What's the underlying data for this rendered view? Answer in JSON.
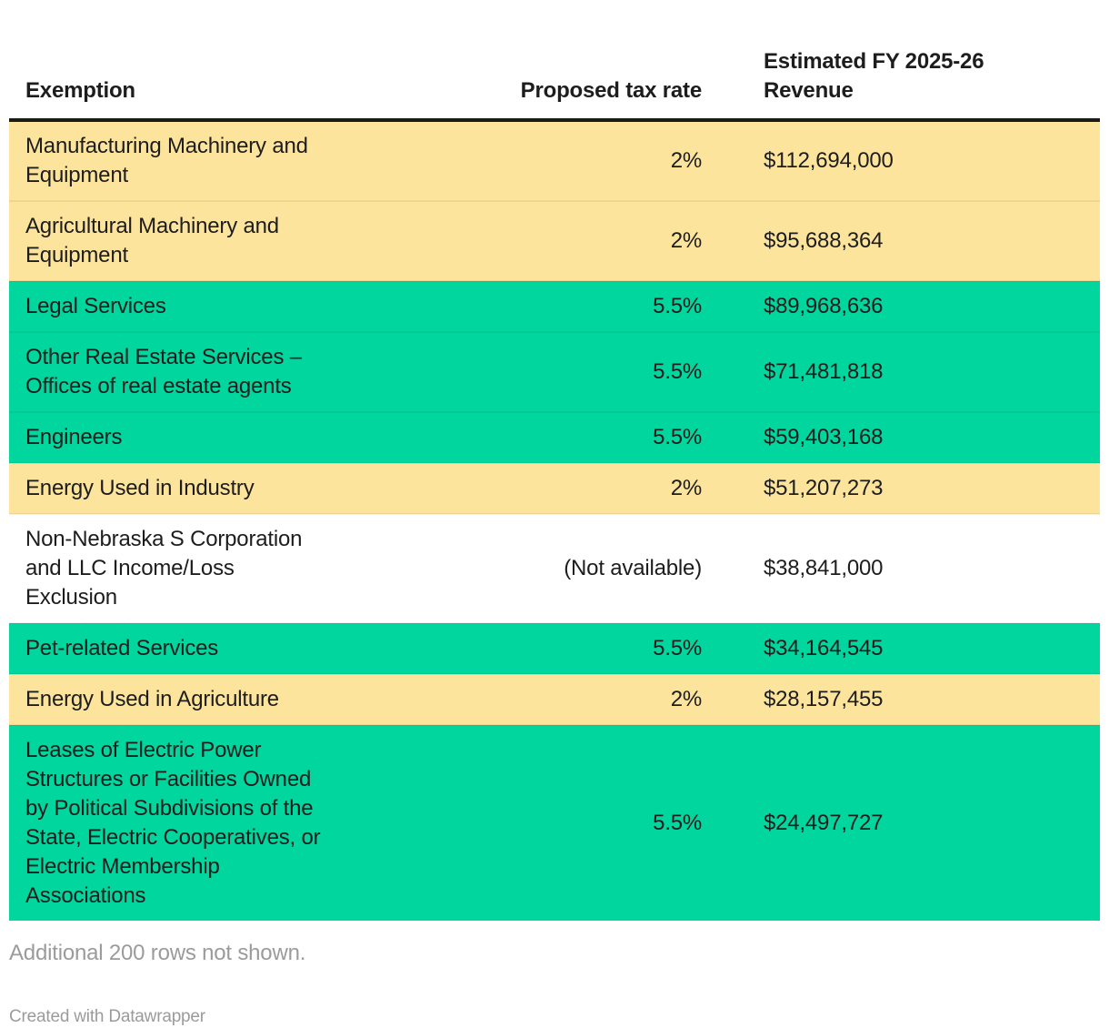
{
  "colors": {
    "yellow": "#fde49c",
    "green": "#00d69e",
    "none": "#ffffff",
    "header_rule": "#1a1a1a",
    "text": "#1d1d1d",
    "muted_text": "#9b9b9b"
  },
  "chart_data": {
    "type": "table",
    "columns": [
      {
        "label": "Exemption"
      },
      {
        "label": "Proposed tax rate"
      },
      {
        "label": "Estimated FY 2025-26\nRevenue"
      }
    ],
    "rows": [
      {
        "exemption": "Manufacturing Machinery and\nEquipment",
        "proposed_tax_rate": "2%",
        "estimated_revenue": "$112,694,000",
        "highlight": "yellow"
      },
      {
        "exemption": "Agricultural Machinery and\nEquipment",
        "proposed_tax_rate": "2%",
        "estimated_revenue": "$95,688,364",
        "highlight": "yellow"
      },
      {
        "exemption": "Legal Services",
        "proposed_tax_rate": "5.5%",
        "estimated_revenue": "$89,968,636",
        "highlight": "green"
      },
      {
        "exemption": "Other Real Estate Services –\nOffices of real estate agents",
        "proposed_tax_rate": "5.5%",
        "estimated_revenue": "$71,481,818",
        "highlight": "green"
      },
      {
        "exemption": "Engineers",
        "proposed_tax_rate": "5.5%",
        "estimated_revenue": "$59,403,168",
        "highlight": "green"
      },
      {
        "exemption": "Energy Used in Industry",
        "proposed_tax_rate": "2%",
        "estimated_revenue": "$51,207,273",
        "highlight": "yellow"
      },
      {
        "exemption": "Non-Nebraska S Corporation\nand LLC Income/Loss\nExclusion",
        "proposed_tax_rate": "(Not available)",
        "estimated_revenue": "$38,841,000",
        "highlight": "none"
      },
      {
        "exemption": "Pet-related Services",
        "proposed_tax_rate": "5.5%",
        "estimated_revenue": "$34,164,545",
        "highlight": "green"
      },
      {
        "exemption": "Energy Used in Agriculture",
        "proposed_tax_rate": "2%",
        "estimated_revenue": "$28,157,455",
        "highlight": "yellow"
      },
      {
        "exemption": "Leases of Electric Power\nStructures or Facilities Owned\nby Political Subdivisions of the\nState, Electric Cooperatives, or\nElectric Membership\nAssociations",
        "proposed_tax_rate": "5.5%",
        "estimated_revenue": "$24,497,727",
        "highlight": "green"
      }
    ],
    "note": "Additional 200 rows not shown.",
    "attribution": "Created with Datawrapper"
  }
}
